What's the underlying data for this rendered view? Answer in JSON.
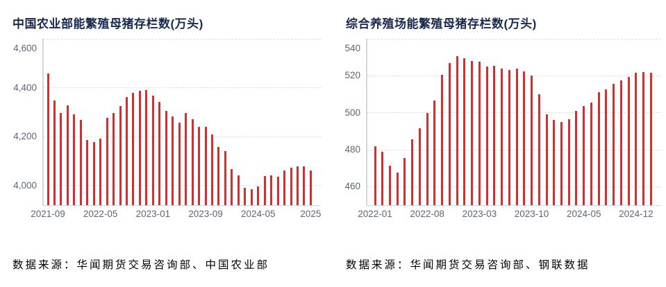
{
  "page": {
    "background": "#ffffff"
  },
  "colors": {
    "bar": "#d23030",
    "title_text": "#17294f",
    "axis_text": "#5a6678",
    "gridline": "#e0e0e0",
    "axis_line": "#d6d6d6",
    "source_text": "#000000"
  },
  "chart_data": [
    {
      "type": "bar",
      "title": "中国农业部能繁殖母猪存栏数(万头)",
      "source": "数据来源：华闻期货交易咨询部、中国农业部",
      "xlabel": "",
      "ylabel": "",
      "legend": "none",
      "grid": "horizontal-dashed",
      "ylim": [
        3920,
        4600
      ],
      "yticks": [
        4000,
        4200,
        4400,
        4600
      ],
      "ytick_labels": [
        "4,000",
        "4,200",
        "4,400",
        "4,600"
      ],
      "categories": [
        "2021-09",
        "2021-10",
        "2021-11",
        "2021-12",
        "2022-01",
        "2022-02",
        "2022-03",
        "2022-04",
        "2022-05",
        "2022-06",
        "2022-07",
        "2022-08",
        "2022-09",
        "2022-10",
        "2022-11",
        "2022-12",
        "2023-01",
        "2023-02",
        "2023-03",
        "2023-04",
        "2023-05",
        "2023-06",
        "2023-07",
        "2023-08",
        "2023-09",
        "2023-10",
        "2023-11",
        "2023-12",
        "2024-01",
        "2024-02",
        "2024-03",
        "2024-04",
        "2024-05",
        "2024-06",
        "2024-07",
        "2024-08",
        "2024-09",
        "2024-10",
        "2024-11",
        "2024-12",
        "2025-01"
      ],
      "values": [
        4459,
        4348,
        4296,
        4329,
        4290,
        4268,
        4185,
        4177,
        4192,
        4277,
        4298,
        4324,
        4362,
        4379,
        4388,
        4390,
        4367,
        4343,
        4305,
        4284,
        4258,
        4296,
        4271,
        4241,
        4240,
        4210,
        4158,
        4142,
        4067,
        4042,
        3992,
        3986,
        3996,
        4038,
        4041,
        4036,
        4062,
        4073,
        4080,
        4078,
        4062
      ],
      "xticks": [
        {
          "index": 0,
          "label": "2021-09"
        },
        {
          "index": 8,
          "label": "2022-05"
        },
        {
          "index": 16,
          "label": "2023-01"
        },
        {
          "index": 24,
          "label": "2023-09"
        },
        {
          "index": 32,
          "label": "2024-05"
        },
        {
          "index": 40,
          "label": "2025"
        }
      ]
    },
    {
      "type": "bar",
      "title": "综合养殖场能繁殖母猪存栏数(万头)",
      "source": "数据来源：华闻期货交易咨询部、钢联数据",
      "xlabel": "",
      "ylabel": "",
      "legend": "none",
      "grid": "horizontal-dashed",
      "ylim": [
        450,
        540
      ],
      "yticks": [
        460,
        480,
        500,
        520,
        540
      ],
      "ytick_labels": [
        "460",
        "480",
        "500",
        "520",
        "540"
      ],
      "categories": [
        "2022-01",
        "2022-02",
        "2022-03",
        "2022-04",
        "2022-05",
        "2022-06",
        "2022-07",
        "2022-08",
        "2022-09",
        "2022-10",
        "2022-11",
        "2022-12",
        "2023-01",
        "2023-02",
        "2023-03",
        "2023-04",
        "2023-05",
        "2023-06",
        "2023-07",
        "2023-08",
        "2023-09",
        "2023-10",
        "2023-11",
        "2023-12",
        "2024-01",
        "2024-02",
        "2024-03",
        "2024-04",
        "2024-05",
        "2024-06",
        "2024-07",
        "2024-08",
        "2024-09",
        "2024-10",
        "2024-11",
        "2024-12",
        "2025-01",
        "2025-02"
      ],
      "values": [
        482,
        479,
        471.5,
        467.5,
        475.5,
        485.5,
        491.5,
        500,
        506.5,
        520.5,
        527,
        530.5,
        529.5,
        528,
        527.5,
        525,
        525.5,
        524,
        523,
        524,
        522.5,
        520,
        510,
        499,
        496,
        495,
        496.5,
        501,
        503.5,
        505.5,
        511,
        512.5,
        515.5,
        517.5,
        519.5,
        521.5,
        522,
        521.5
      ],
      "xticks": [
        {
          "index": 0,
          "label": "2022-01"
        },
        {
          "index": 7,
          "label": "2022-08"
        },
        {
          "index": 14,
          "label": "2023-03"
        },
        {
          "index": 21,
          "label": "2023-10"
        },
        {
          "index": 28,
          "label": "2024-05"
        },
        {
          "index": 35,
          "label": "2024-12"
        }
      ]
    }
  ]
}
